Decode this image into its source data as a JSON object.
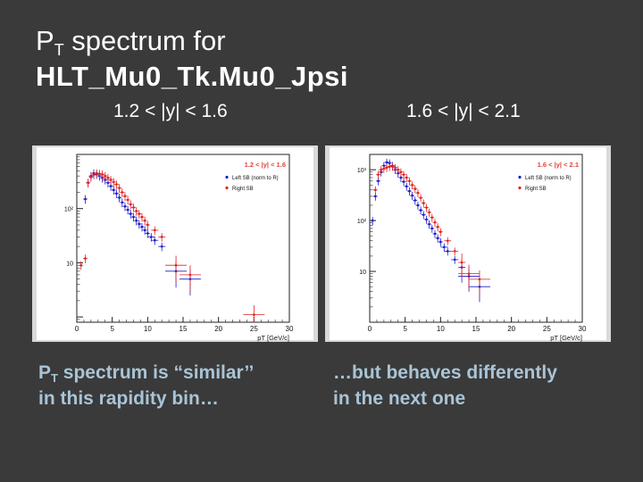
{
  "slide": {
    "title_line1_prefix": "P",
    "title_line1_sub": "T",
    "title_line1_suffix": " spectrum for",
    "title_line2": "HLT_Mu0_Tk.Mu0_Jpsi",
    "caption_left_prefix": "P",
    "caption_left_sub": "T",
    "caption_left_rest_line1": " spectrum is “similar’’",
    "caption_left_line2": "in this rapidity bin…",
    "caption_right_line1": "…but behaves differently",
    "caption_right_line2": "in the next one"
  },
  "colors": {
    "background": "#3a3a3a",
    "caption": "#a9c4d6",
    "left_sb": "#1a1acc",
    "right_sb": "#e02020"
  },
  "chart_data": [
    {
      "type": "scatter",
      "label": "1.2 < |y| < 1.6",
      "xlabel": "pT [GeV/c]",
      "xlim": [
        0,
        30
      ],
      "ylog": true,
      "ylim": [
        0.8,
        1000
      ],
      "xticks": [
        0,
        5,
        10,
        15,
        20,
        25,
        30
      ],
      "yticks": [
        {
          "value": 10,
          "label": "10"
        },
        {
          "value": 100,
          "label": "10²"
        }
      ],
      "legend": {
        "title": "1.2 < |y| < 1.6",
        "entries": [
          "Left SB (norm to R)",
          "Right SB"
        ],
        "placement": "top-right"
      },
      "series": [
        {
          "name": "Left SB (norm to R)",
          "color": "#1a1acc",
          "x": [
            1.2,
            1.6,
            2.0,
            2.4,
            2.8,
            3.2,
            3.6,
            4.0,
            4.4,
            4.8,
            5.2,
            5.6,
            6.0,
            6.4,
            6.8,
            7.2,
            7.6,
            8.0,
            8.4,
            8.8,
            9.2,
            9.6,
            10.0,
            10.5,
            11.0,
            12.0,
            14.0,
            16.0
          ],
          "y": [
            150,
            300,
            400,
            450,
            430,
            400,
            370,
            340,
            300,
            260,
            220,
            190,
            160,
            130,
            110,
            95,
            80,
            70,
            60,
            52,
            46,
            40,
            35,
            30,
            26,
            20,
            7,
            5
          ]
        },
        {
          "name": "Right SB",
          "color": "#e02020",
          "x": [
            0.6,
            1.2,
            1.6,
            2.0,
            2.4,
            2.8,
            3.2,
            3.6,
            4.0,
            4.4,
            4.8,
            5.2,
            5.6,
            6.0,
            6.4,
            6.8,
            7.2,
            7.6,
            8.0,
            8.4,
            8.8,
            9.2,
            9.6,
            10.0,
            11.0,
            12.0,
            14.0,
            16.0,
            25.0
          ],
          "y": [
            9,
            12,
            300,
            380,
            420,
            450,
            440,
            430,
            400,
            370,
            340,
            310,
            280,
            240,
            200,
            170,
            145,
            120,
            105,
            90,
            80,
            70,
            60,
            50,
            40,
            30,
            9,
            6,
            1.1
          ]
        }
      ]
    },
    {
      "type": "scatter",
      "label": "1.6 < |y| < 2.1",
      "xlabel": "pT [GeV/c]",
      "xlim": [
        0,
        30
      ],
      "ylog": true,
      "ylim": [
        1,
        2000
      ],
      "xticks": [
        0,
        5,
        10,
        15,
        20,
        25,
        30
      ],
      "yticks": [
        {
          "value": 10,
          "label": "10"
        },
        {
          "value": 100,
          "label": "10²"
        },
        {
          "value": 1000,
          "label": "10³"
        }
      ],
      "legend": {
        "title": "1.6 < |y| < 2.1",
        "entries": [
          "Left SB (norm to R)",
          "Right SB"
        ],
        "placement": "top-right"
      },
      "series": [
        {
          "name": "Left SB (norm to R)",
          "color": "#1a1acc",
          "x": [
            0.4,
            0.8,
            1.2,
            1.6,
            2.0,
            2.4,
            2.8,
            3.2,
            3.6,
            4.0,
            4.4,
            4.8,
            5.2,
            5.6,
            6.0,
            6.4,
            6.8,
            7.2,
            7.6,
            8.0,
            8.4,
            8.8,
            9.2,
            9.6,
            10.0,
            10.5,
            11.0,
            12.0,
            13.0,
            14.0,
            15.5
          ],
          "y": [
            100,
            300,
            600,
            900,
            1200,
            1400,
            1350,
            1200,
            1000,
            850,
            700,
            580,
            470,
            380,
            310,
            250,
            200,
            160,
            130,
            105,
            85,
            70,
            55,
            45,
            38,
            30,
            25,
            17,
            12,
            8,
            5
          ]
        },
        {
          "name": "Right SB",
          "color": "#e02020",
          "x": [
            0.8,
            1.2,
            1.6,
            2.0,
            2.4,
            2.8,
            3.2,
            3.6,
            4.0,
            4.4,
            4.8,
            5.2,
            5.6,
            6.0,
            6.4,
            6.8,
            7.2,
            7.6,
            8.0,
            8.4,
            8.8,
            9.2,
            9.6,
            10.0,
            11.0,
            12.0,
            13.0,
            14.0,
            15.5
          ],
          "y": [
            400,
            800,
            1000,
            1050,
            1100,
            1150,
            1150,
            1100,
            1000,
            900,
            800,
            700,
            600,
            500,
            420,
            350,
            280,
            220,
            180,
            145,
            115,
            92,
            75,
            60,
            40,
            25,
            15,
            9,
            7
          ]
        }
      ]
    }
  ]
}
